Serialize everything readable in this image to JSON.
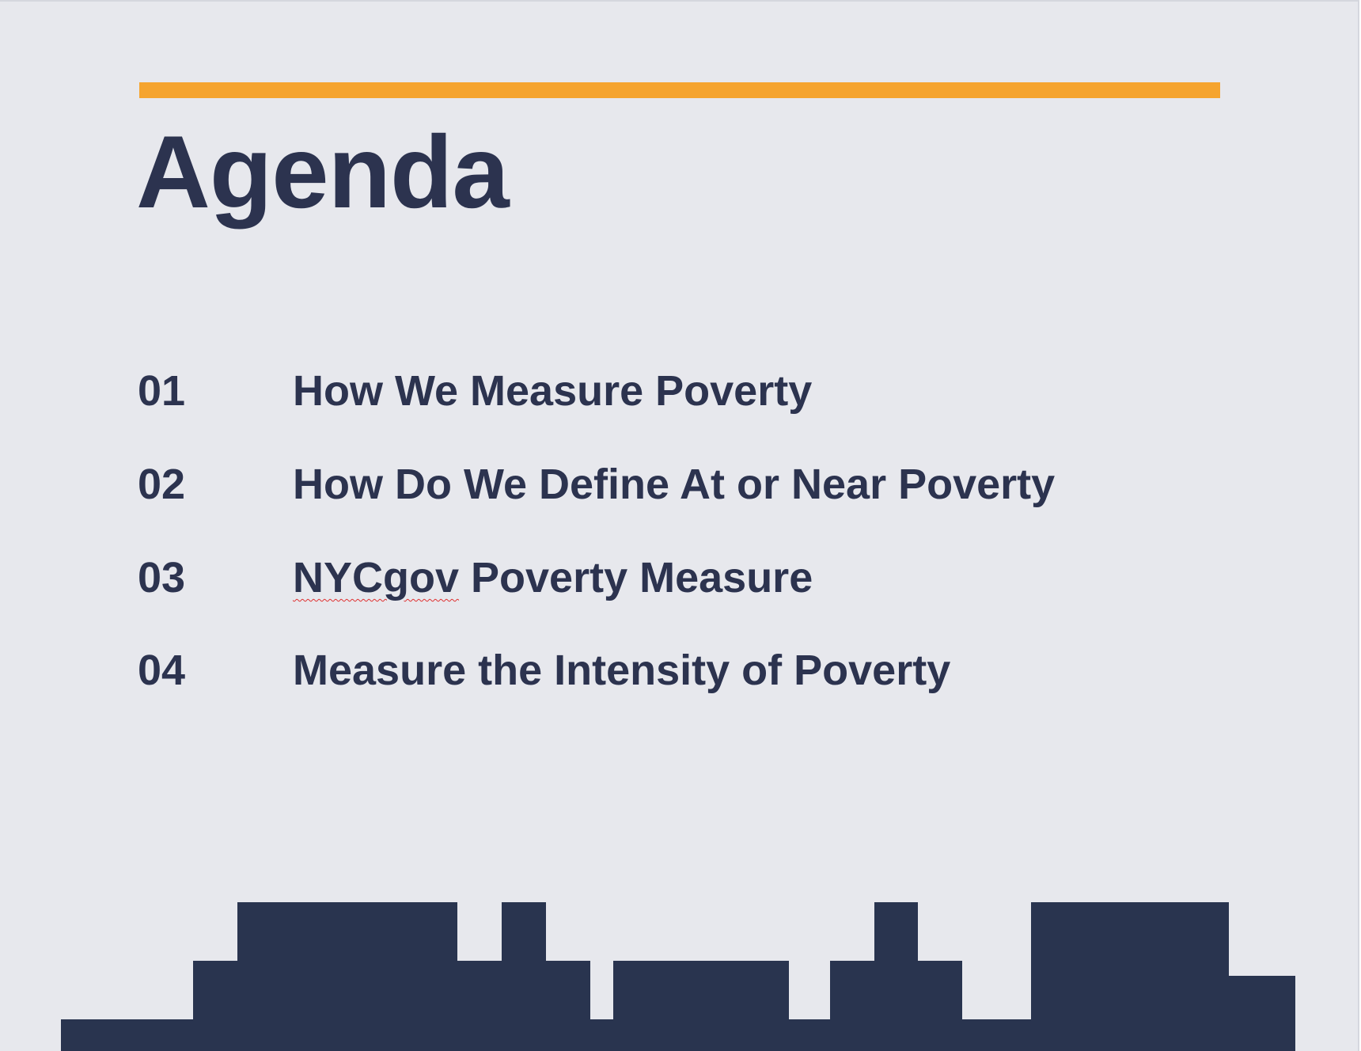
{
  "slide": {
    "title": "Agenda",
    "items": [
      {
        "number": "01",
        "label": "How We Measure Poverty"
      },
      {
        "number": "02",
        "label": "How Do We Define At or Near Poverty"
      },
      {
        "number": "03",
        "label_flagged": "NYCgov",
        "label_rest": " Poverty Measure"
      },
      {
        "number": "04",
        "label": "Measure the Intensity of Poverty"
      }
    ]
  },
  "colors": {
    "background": "#e7e8ed",
    "accent": "#f5a42f",
    "text": "#2c334f",
    "skyline": "#29344f",
    "spellcheck_underline": "#e03030"
  }
}
